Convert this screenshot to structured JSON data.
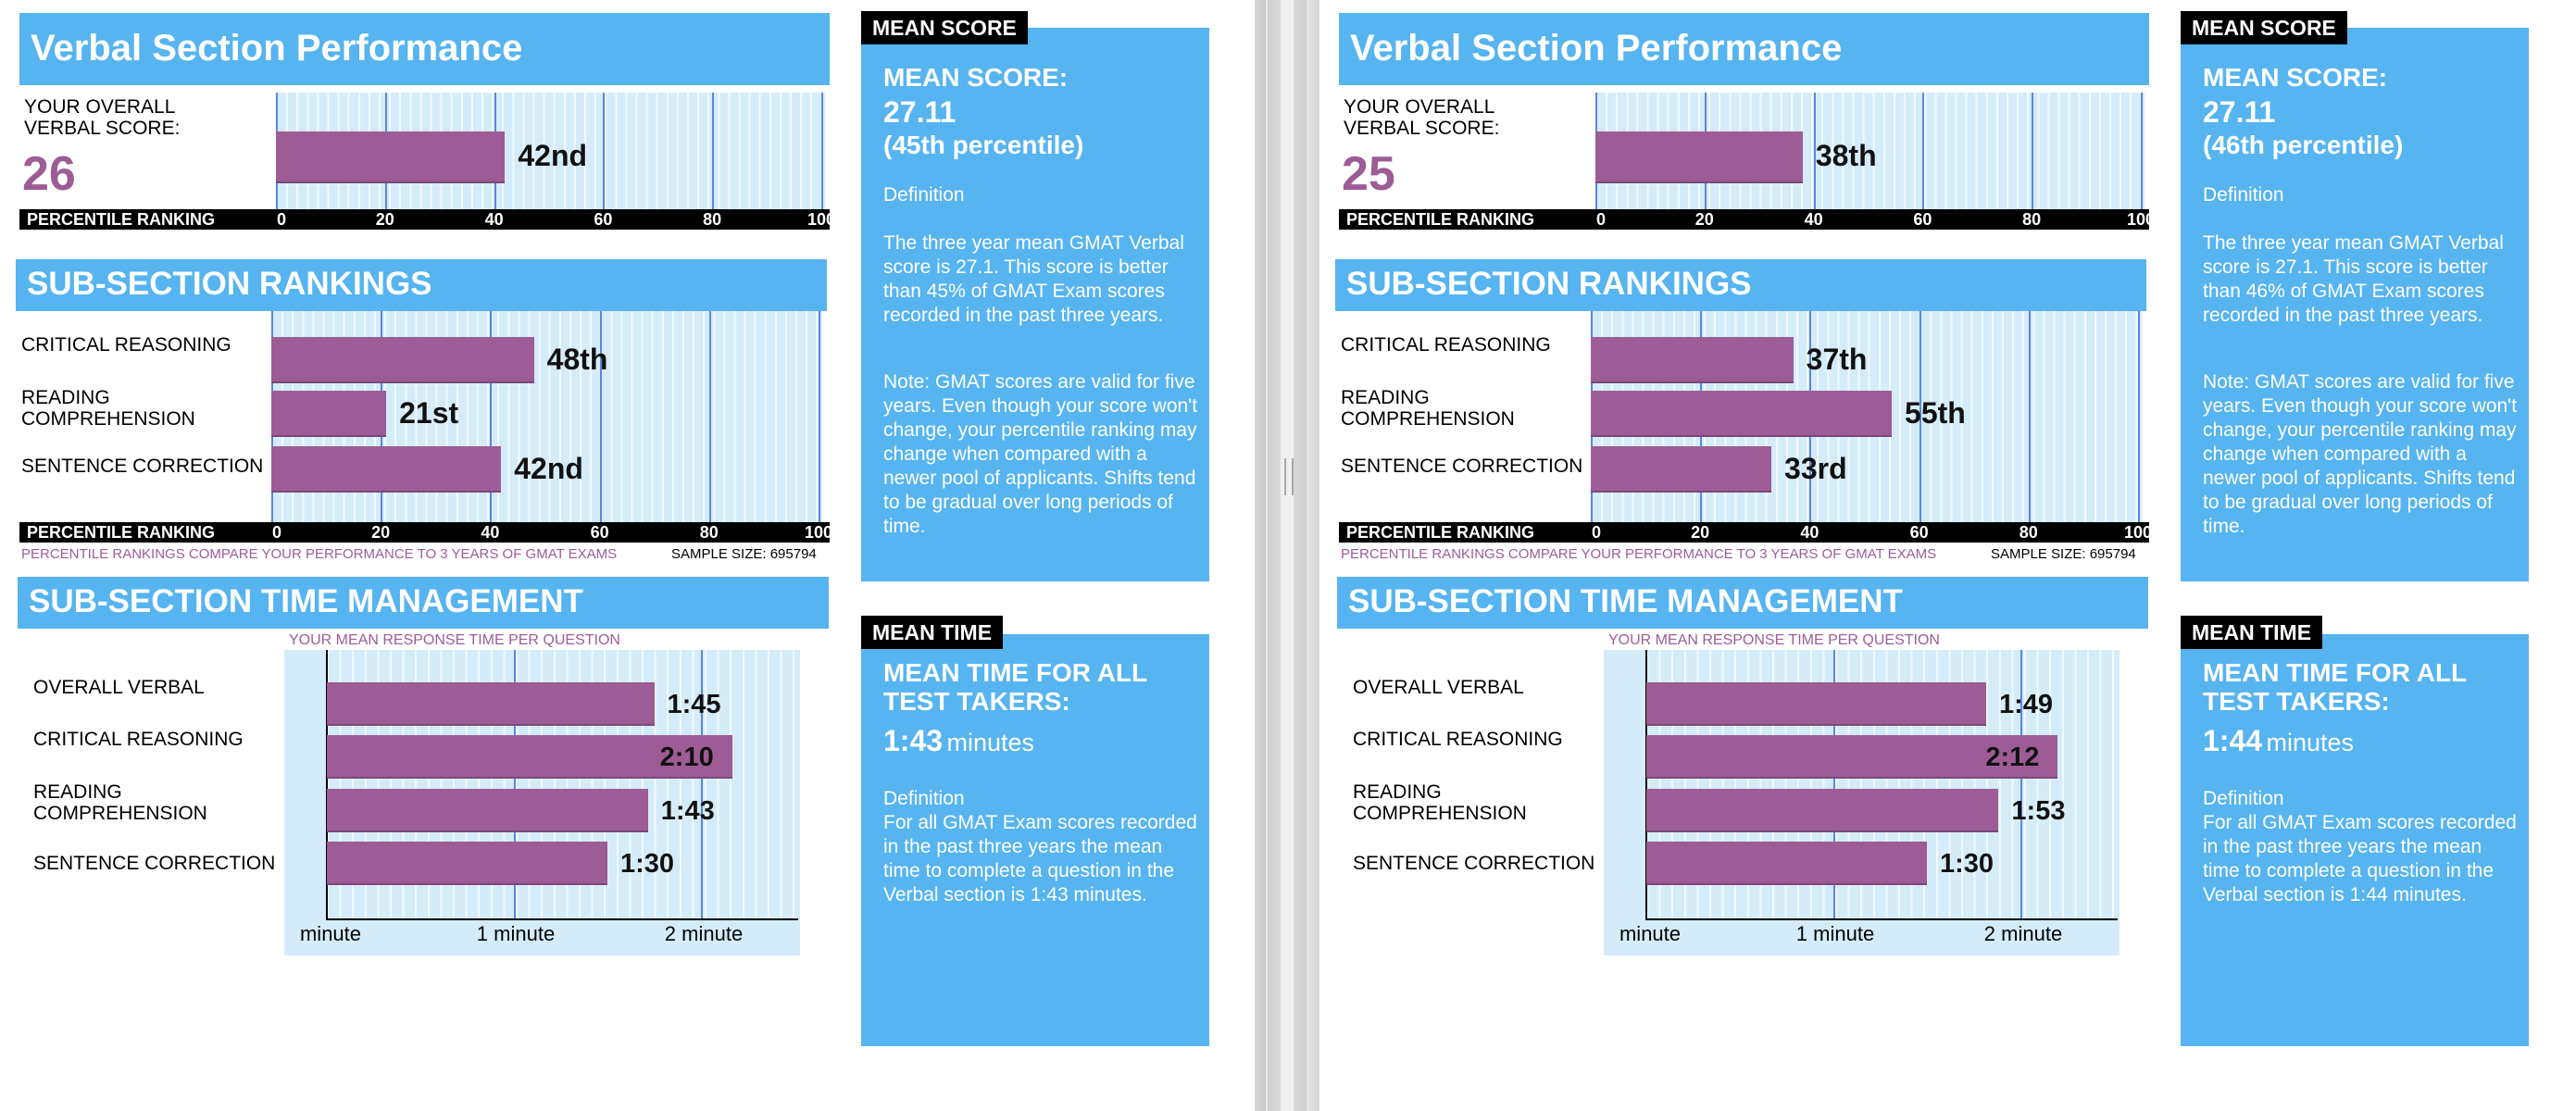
{
  "report": {
    "title": "Verbal Section Performance",
    "overall_label": "YOUR OVERALL VERBAL SCORE:",
    "percentile_bar_label": "PERCENTILE RANKING",
    "scale_ticks": [
      "0",
      "20",
      "40",
      "60",
      "80",
      "100"
    ],
    "subsection_title": "SUB-SECTION RANKINGS",
    "subsection_names": [
      "CRITICAL REASONING",
      "READING COMPREHENSION",
      "SENTENCE CORRECTION"
    ],
    "footnote": "PERCENTILE RANKINGS COMPARE YOUR PERFORMANCE TO 3 YEARS OF GMAT EXAMS",
    "sample_size": "SAMPLE SIZE: 695794",
    "time_title": "SUB-SECTION TIME MANAGEMENT",
    "time_caption": "YOUR MEAN RESPONSE TIME PER QUESTION",
    "time_names": [
      "OVERALL VERBAL",
      "CRITICAL REASONING",
      "READING COMPREHENSION",
      "SENTENCE CORRECTION"
    ],
    "time_ticks": [
      "minute",
      "1 minute",
      "2 minute"
    ],
    "mean_score_tag": "MEAN SCORE",
    "mean_score_heading": "MEAN SCORE:",
    "definition_label": "Definition",
    "mean_time_tag": "MEAN TIME",
    "mean_time_heading": "MEAN TIME FOR ALL TEST TAKERS:",
    "minutes_word": "minutes",
    "note_text": "Note:  GMAT scores are valid for five years. Even though your score won't change, your percentile ranking may change when compared with a newer pool of applicants.  Shifts tend to be gradual over long periods of time."
  },
  "panes": [
    {
      "overall_score": "26",
      "overall_percentile": 42,
      "overall_percentile_label": "42nd",
      "subsections": [
        {
          "percentile": 48,
          "label": "48th"
        },
        {
          "percentile": 21,
          "label": "21st"
        },
        {
          "percentile": 42,
          "label": "42nd"
        }
      ],
      "times": [
        {
          "seconds": 105,
          "label": "1:45"
        },
        {
          "seconds": 130,
          "label": "2:10"
        },
        {
          "seconds": 103,
          "label": "1:43"
        },
        {
          "seconds": 90,
          "label": "1:30"
        }
      ],
      "mean_score": "27.11",
      "mean_percentile": "(45th percentile)",
      "mean_definition": "The three year mean GMAT Verbal  score is 27.1. This score is better than 45% of GMAT Exam scores recorded in the past three years.",
      "mean_time": "1:43",
      "time_definition": "For all GMAT Exam scores recorded in the past three years the mean time to complete a question in the Verbal section is 1:43 minutes."
    },
    {
      "overall_score": "25",
      "overall_percentile": 38,
      "overall_percentile_label": "38th",
      "subsections": [
        {
          "percentile": 37,
          "label": "37th"
        },
        {
          "percentile": 55,
          "label": "55th"
        },
        {
          "percentile": 33,
          "label": "33rd"
        }
      ],
      "times": [
        {
          "seconds": 109,
          "label": "1:49"
        },
        {
          "seconds": 132,
          "label": "2:12"
        },
        {
          "seconds": 113,
          "label": "1:53"
        },
        {
          "seconds": 90,
          "label": "1:30"
        }
      ],
      "mean_score": "27.11",
      "mean_percentile": "(46th percentile)",
      "mean_definition": "The three year mean GMAT Verbal  score is 27.1. This score is better than 46% of GMAT Exam scores recorded in the past three years.",
      "mean_time": "1:44",
      "time_definition": "For all GMAT Exam scores recorded in the past three years the mean time to complete a question in the Verbal section is 1:44 minutes."
    }
  ]
}
